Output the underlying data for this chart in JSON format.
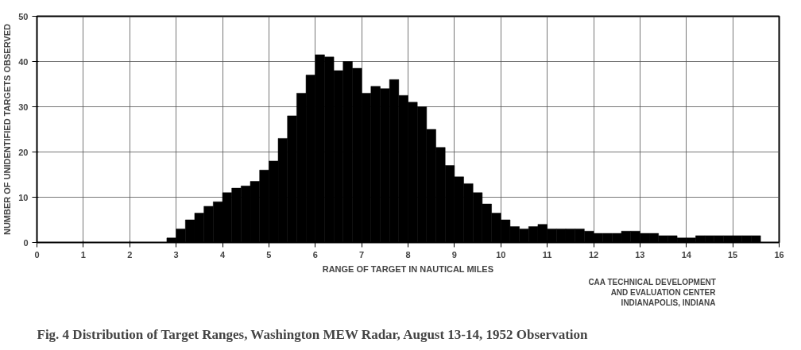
{
  "chart_data": {
    "type": "histogram",
    "title": "Fig. 4  Distribution of Target Ranges, Washington MEW Radar, August 13-14, 1952 Observation",
    "xlabel": "RANGE OF TARGET IN NAUTICAL MILES",
    "ylabel": "NUMBER OF UNIDENTIFIED TARGETS OBSERVED",
    "annotations": [
      "CAA TECHNICAL DEVELOPMENT",
      "AND EVALUATION CENTER",
      "INDIANAPOLIS, INDIANA"
    ],
    "bins": [
      2.8,
      3.0,
      3.2,
      3.4,
      3.6,
      3.8,
      4.0,
      4.2,
      4.4,
      4.6,
      4.8,
      5.0,
      5.2,
      5.4,
      5.6,
      5.8,
      6.0,
      6.2,
      6.4,
      6.6,
      6.8,
      7.0,
      7.2,
      7.4,
      7.6,
      7.8,
      8.0,
      8.2,
      8.4,
      8.6,
      8.8,
      9.0,
      9.2,
      9.4,
      9.6,
      9.8,
      10.0,
      10.2,
      10.4,
      10.6,
      10.8,
      11.0,
      11.2,
      11.4,
      11.6,
      11.8,
      12.0,
      12.2,
      12.4,
      12.6,
      12.8,
      13.0,
      13.2,
      13.4,
      13.6,
      13.8,
      14.0,
      14.2,
      14.4,
      14.6,
      14.8,
      15.0,
      15.2,
      15.4,
      15.6
    ],
    "values": [
      1,
      3,
      5,
      6.5,
      8,
      9,
      11,
      12,
      12.5,
      13.5,
      16,
      18,
      23,
      28,
      33,
      37,
      41.5,
      41,
      38,
      40,
      38.5,
      33,
      34.5,
      34,
      36,
      32.5,
      31,
      30,
      25,
      21,
      17,
      14.5,
      13,
      11,
      8.5,
      6.5,
      5,
      3.5,
      3,
      3.5,
      4,
      3,
      3,
      3,
      3,
      2.5,
      2,
      2,
      2,
      2.5,
      2.5,
      2,
      2,
      1.5,
      1.5,
      1,
      1,
      1.5,
      1.5,
      1.5,
      1.5,
      1.5,
      1.5,
      1.5
    ],
    "color": "#000000",
    "xlim": [
      0,
      16
    ],
    "ylim": [
      0,
      50
    ],
    "xticks": [
      0,
      1,
      2,
      3,
      4,
      5,
      6,
      7,
      8,
      9,
      10,
      11,
      12,
      13,
      14,
      15,
      16
    ],
    "yticks": [
      0,
      10,
      20,
      30,
      40,
      50
    ],
    "grid": true
  }
}
